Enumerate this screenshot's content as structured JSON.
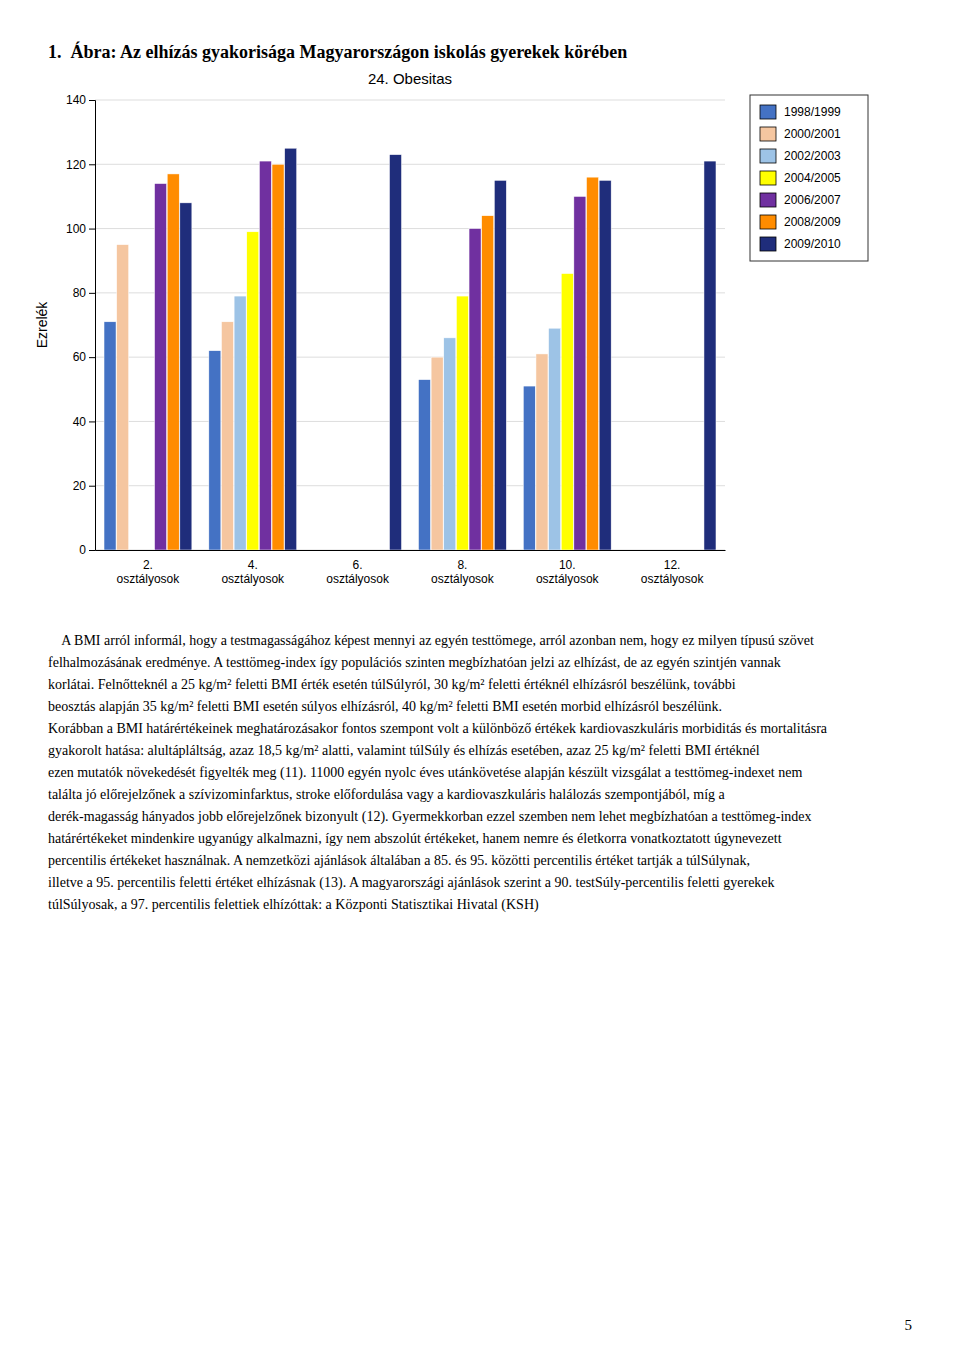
{
  "page_title": "1.  Ábra: Az elhízás gyakorisága Magyarországon iskolás gyerekek körében",
  "chart_data": {
    "type": "bar",
    "title": "24. Obesitas",
    "ylabel": "Ezrelék",
    "categories": [
      "2.\nosztályosok",
      "4.\nosztályosok",
      "6.\nosztályosok",
      "8.\nosztályosok",
      "10.\nosztályosok",
      "12.\nosztályosok"
    ],
    "series": [
      {
        "name": "1998/1999",
        "color": "#4472C4",
        "values": [
          71,
          62,
          0,
          53,
          51,
          0
        ]
      },
      {
        "name": "2000/2001",
        "color": "#F5C6A0",
        "values": [
          95,
          71,
          0,
          60,
          61,
          0
        ]
      },
      {
        "name": "2002/2003",
        "color": "#9DC3E6",
        "values": [
          0,
          79,
          0,
          66,
          69,
          0
        ]
      },
      {
        "name": "2004/2005",
        "color": "#FFFF00",
        "values": [
          0,
          99,
          0,
          79,
          86,
          0
        ]
      },
      {
        "name": "2006/2007",
        "color": "#7030A0",
        "values": [
          114,
          121,
          0,
          100,
          110,
          0
        ]
      },
      {
        "name": "2008/2009",
        "color": "#FF8C00",
        "values": [
          117,
          120,
          0,
          104,
          116,
          0
        ]
      },
      {
        "name": "2009/2010",
        "color": "#1F2D7B",
        "values": [
          108,
          125,
          123,
          115,
          115,
          121
        ]
      }
    ],
    "ylim": [
      0,
      140
    ],
    "yticks": [
      0,
      20,
      40,
      60,
      80,
      100,
      120,
      140
    ],
    "grid": true,
    "legend": "right"
  },
  "body_lines": [
    "    A BMI arról informál, hogy a testmagasságához képest mennyi az egyén testtömege, arról azonban nem, hogy ez milyen típusú szövet",
    "felhalmozásának eredménye. A testtömeg-index így populációs szinten megbízhatóan jelzi az elhízást, de az egyén szintjén vannak",
    "korlátai. Felnőtteknél a 25 kg/m² feletti BMI érték esetén túlSúlyról, 30 kg/m² feletti értéknél elhízásról beszélünk, további",
    "beosztás alapján 35 kg/m² feletti BMI esetén súlyos elhízásról, 40 kg/m² feletti BMI esetén morbid elhízásról beszélünk.",
    "Korábban a BMI határértékeinek meghatározásakor fontos szempont volt a különböző értékek kardiovaszkuláris morbiditás és mortalitásra",
    "gyakorolt hatása: alultápláltság, azaz 18,5 kg/m² alatti, valamint túlSúly és elhízás esetében, azaz 25 kg/m² feletti BMI értéknél",
    "ezen mutatók növekedését figyelték meg (11). 11000 egyén nyolc éves utánkövetése alapján készült vizsgálat a testtömeg-indexet nem",
    "találta jó előrejelzőnek a szívizominfarktus, stroke előfordulása vagy a kardiovaszkuláris halálozás szempontjából, míg a",
    "derék-magasság hányados jobb előrejelzőnek bizonyult (12). Gyermekkorban ezzel szemben nem lehet megbízhatóan a testtömeg-index",
    "határértékeket mindenkire ugyanúgy alkalmazni, így nem abszolút értékeket, hanem nemre és életkorra vonatkoztatott úgynevezett",
    "percentilis értékeket használnak. A nemzetközi ajánlások általában a 85. és 95. közötti percentilis értéket tartják a túlSúlynak,",
    "illetve a 95. percentilis feletti értéket elhízásnak (13). A magyarországi ajánlások szerint a 90. testSúly-percentilis feletti gyerekek",
    "túlSúlyosak, a 97. percentilis felettiek elhízóttak: a Központi Statisztikai Hivatal (KSH)"
  ],
  "footer_number": "5"
}
